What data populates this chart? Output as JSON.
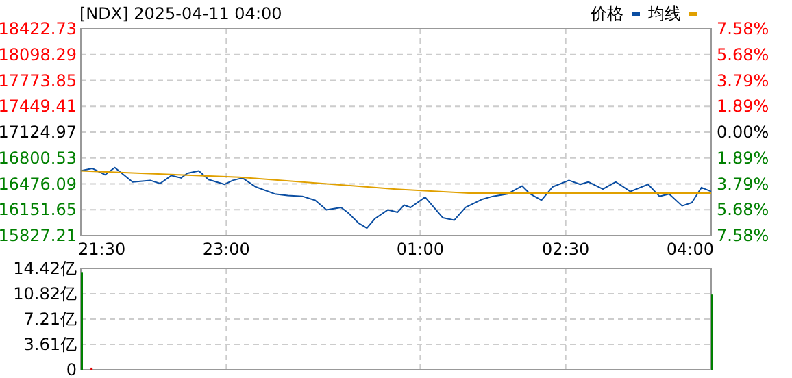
{
  "chart_data": [
    {
      "type": "line",
      "title": "[NDX] 2025-04-11 04:00",
      "legend": "top right",
      "grid": true,
      "xlim": [
        "2025-04-10T21:30",
        "2025-04-11T04:00"
      ],
      "xticks": [
        {
          "value": "2025-04-10T21:30",
          "label": "21:30"
        },
        {
          "value": "2025-04-10T23:00",
          "label": "23:00"
        },
        {
          "value": "2025-04-11T01:00",
          "label": "01:00"
        },
        {
          "value": "2025-04-11T02:30",
          "label": "02:30"
        },
        {
          "value": "2025-04-11T04:00",
          "label": "04:00"
        }
      ],
      "ylim": [
        15827.21,
        18422.73
      ],
      "yticks": [
        15827.21,
        16151.65,
        16476.09,
        16800.53,
        17124.97,
        17449.41,
        17773.85,
        18098.29,
        18422.73
      ],
      "y2lim": [
        -7.58,
        7.58
      ],
      "y2ticks": [
        {
          "value": -7.58,
          "label": "7.58%"
        },
        {
          "value": -5.68,
          "label": "5.68%"
        },
        {
          "value": -3.79,
          "label": "3.79%"
        },
        {
          "value": -1.89,
          "label": "1.89%"
        },
        {
          "value": 0,
          "label": "0.00%"
        },
        {
          "value": 1.89,
          "label": "1.89%"
        },
        {
          "value": 3.79,
          "label": "3.79%"
        },
        {
          "value": 5.68,
          "label": "5.68%"
        },
        {
          "value": 7.58,
          "label": "7.58%"
        }
      ],
      "series": [
        {
          "name": "价格",
          "color": "#0b4ea2",
          "x": [
            "2025-04-10T21:30",
            "2025-04-10T21:37",
            "2025-04-10T21:45",
            "2025-04-10T21:51",
            "2025-04-10T22:02",
            "2025-04-10T22:13",
            "2025-04-10T22:19",
            "2025-04-10T22:26",
            "2025-04-10T22:32",
            "2025-04-10T22:36",
            "2025-04-10T22:43",
            "2025-04-10T22:49",
            "2025-04-10T22:59",
            "2025-04-10T23:04",
            "2025-04-10T23:10",
            "2025-04-10T23:18",
            "2025-04-10T23:30",
            "2025-04-10T23:38",
            "2025-04-10T23:47",
            "2025-04-10T23:55",
            "2025-04-11T00:02",
            "2025-04-11T00:11",
            "2025-04-11T00:15",
            "2025-04-11T00:22",
            "2025-04-11T00:27",
            "2025-04-11T00:32",
            "2025-04-11T00:40",
            "2025-04-11T00:46",
            "2025-04-11T00:50",
            "2025-04-11T00:54",
            "2025-04-11T01:03",
            "2025-04-11T01:14",
            "2025-04-11T01:21",
            "2025-04-11T01:28",
            "2025-04-11T01:38",
            "2025-04-11T01:45",
            "2025-04-11T01:54",
            "2025-04-11T02:03",
            "2025-04-11T02:08",
            "2025-04-11T02:15",
            "2025-04-11T02:22",
            "2025-04-11T02:32",
            "2025-04-11T02:39",
            "2025-04-11T02:44",
            "2025-04-11T02:53",
            "2025-04-11T03:01",
            "2025-04-11T03:10",
            "2025-04-11T03:21",
            "2025-04-11T03:28",
            "2025-04-11T03:34",
            "2025-04-11T03:42",
            "2025-04-11T03:48",
            "2025-04-11T03:54",
            "2025-04-11T04:00"
          ],
          "values": [
            16640,
            16670,
            16590,
            16680,
            16500,
            16520,
            16480,
            16580,
            16550,
            16610,
            16640,
            16530,
            16470,
            16520,
            16550,
            16440,
            16350,
            16330,
            16320,
            16270,
            16150,
            16180,
            16120,
            15980,
            15920,
            16040,
            16150,
            16120,
            16210,
            16180,
            16310,
            16050,
            16020,
            16180,
            16280,
            16320,
            16350,
            16450,
            16350,
            16270,
            16440,
            16520,
            16470,
            16500,
            16410,
            16500,
            16380,
            16470,
            16320,
            16350,
            16200,
            16240,
            16430,
            16380
          ]
        },
        {
          "name": "均线",
          "color": "#e0a000",
          "x": [
            "2025-04-10T21:30",
            "2025-04-10T23:08",
            "2025-04-11T00:45",
            "2025-04-11T01:30",
            "2025-04-11T04:00"
          ],
          "values": [
            16640,
            16560,
            16410,
            16360,
            16360
          ]
        }
      ]
    },
    {
      "type": "bar",
      "grid": true,
      "tick_labels": "y",
      "xlim": [
        "2025-04-10T21:30",
        "2025-04-11T04:00"
      ],
      "xticks": [
        {
          "value": "2025-04-10T21:30",
          "label": null
        },
        {
          "value": "2025-04-10T23:00",
          "label": null
        },
        {
          "value": "2025-04-11T01:00",
          "label": null
        },
        {
          "value": "2025-04-11T02:30",
          "label": null
        },
        {
          "value": "2025-04-11T04:00",
          "label": null
        }
      ],
      "ylim": [
        0,
        14.42
      ],
      "yticks": [
        0,
        {
          "value": 3.61,
          "label": "3.61亿"
        },
        {
          "value": 7.21,
          "label": "7.21亿"
        },
        {
          "value": 10.82,
          "label": "10.82亿"
        },
        {
          "value": 14.42,
          "label": "14.42亿"
        }
      ],
      "x": [
        "2025-04-10T21:30",
        "2025-04-10T21:36",
        "2025-04-11T04:00"
      ],
      "values": [
        13.9,
        0.3,
        10.7
      ],
      "colors": [
        "#008000",
        "#e00000",
        "#008000"
      ]
    }
  ]
}
